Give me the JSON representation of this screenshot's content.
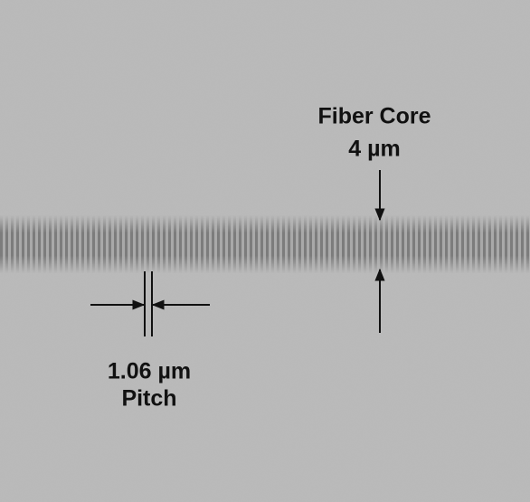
{
  "labels": {
    "fiber_core": "Fiber Core",
    "core_size": "4 µm",
    "pitch_value": "1.06 µm",
    "pitch": "Pitch"
  }
}
